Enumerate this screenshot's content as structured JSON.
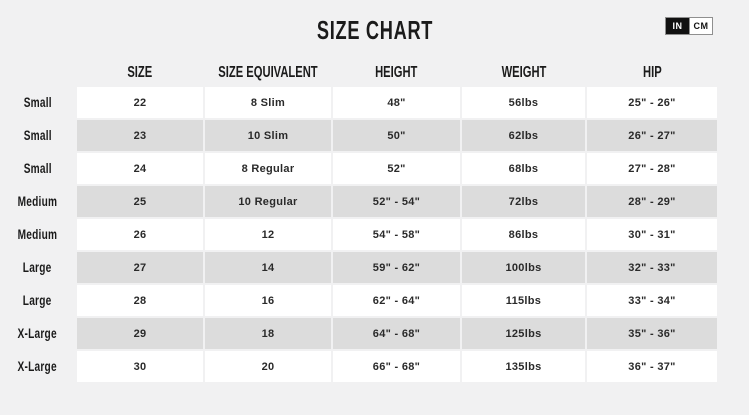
{
  "title": "SIZE CHART",
  "unit_toggle": {
    "options": [
      "IN",
      "CM"
    ],
    "selected": "IN"
  },
  "colors": {
    "page_background": "#f1f1f2",
    "cell_white": "#ffffff",
    "row_stripe_gray": "#dcdcdc",
    "toggle_active_bg": "#111111",
    "text": "#1b1b1b"
  },
  "table": {
    "headers": [
      "SIZE",
      "SIZE EQUIVALENT",
      "HEIGHT",
      "WEIGHT",
      "HIP"
    ],
    "rows": [
      {
        "label": "Small",
        "size": "22",
        "size_equivalent": "8 Slim",
        "height": "48\"",
        "weight": "56lbs",
        "hip": "25\" - 26\""
      },
      {
        "label": "Small",
        "size": "23",
        "size_equivalent": "10 Slim",
        "height": "50\"",
        "weight": "62lbs",
        "hip": "26\" - 27\""
      },
      {
        "label": "Small",
        "size": "24",
        "size_equivalent": "8 Regular",
        "height": "52\"",
        "weight": "68lbs",
        "hip": "27\" - 28\""
      },
      {
        "label": "Medium",
        "size": "25",
        "size_equivalent": "10 Regular",
        "height": "52\" - 54\"",
        "weight": "72lbs",
        "hip": "28\" - 29\""
      },
      {
        "label": "Medium",
        "size": "26",
        "size_equivalent": "12",
        "height": "54\" - 58\"",
        "weight": "86lbs",
        "hip": "30\" - 31\""
      },
      {
        "label": "Large",
        "size": "27",
        "size_equivalent": "14",
        "height": "59\" - 62\"",
        "weight": "100lbs",
        "hip": "32\" - 33\""
      },
      {
        "label": "Large",
        "size": "28",
        "size_equivalent": "16",
        "height": "62\" - 64\"",
        "weight": "115lbs",
        "hip": "33\" - 34\""
      },
      {
        "label": "X-Large",
        "size": "29",
        "size_equivalent": "18",
        "height": "64\" - 68\"",
        "weight": "125lbs",
        "hip": "35\" - 36\""
      },
      {
        "label": "X-Large",
        "size": "30",
        "size_equivalent": "20",
        "height": "66\" - 68\"",
        "weight": "135lbs",
        "hip": "36\" - 37\""
      }
    ]
  }
}
